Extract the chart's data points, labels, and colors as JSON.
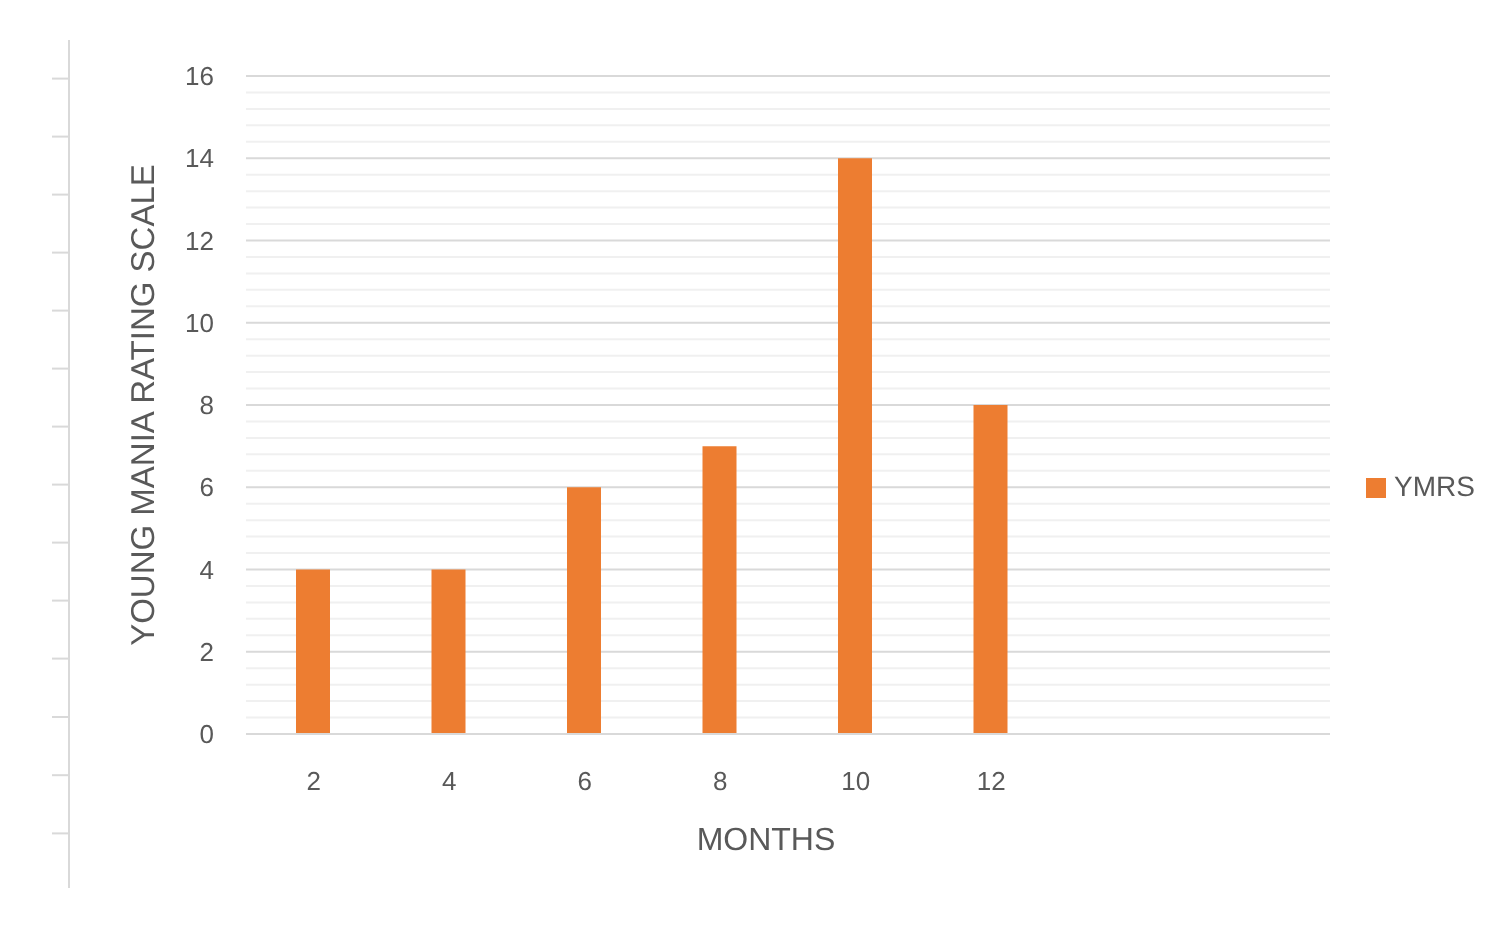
{
  "chart_data": {
    "type": "bar",
    "xlabel": "MONTHS",
    "ylabel": "YOUNG MANIA RATING SCALE",
    "categories": [
      "2",
      "4",
      "6",
      "8",
      "10",
      "12",
      null,
      null
    ],
    "series": [
      {
        "name": "YMRS",
        "color": "#ed7d31",
        "values": [
          4,
          4,
          6,
          7,
          14,
          8,
          null,
          null
        ]
      }
    ],
    "ylim": [
      0,
      16
    ],
    "yticks": [
      0,
      {
        "value": 0.4,
        "label": null
      },
      {
        "value": 0.8,
        "label": null
      },
      {
        "value": 1.2,
        "label": null
      },
      {
        "value": 1.6,
        "label": null
      },
      2,
      {
        "value": 2.4,
        "label": null
      },
      {
        "value": 2.8,
        "label": null
      },
      {
        "value": 3.2,
        "label": null
      },
      {
        "value": 3.6,
        "label": null
      },
      4,
      {
        "value": 4.4,
        "label": null
      },
      {
        "value": 4.8,
        "label": null
      },
      {
        "value": 5.2,
        "label": null
      },
      {
        "value": 5.6,
        "label": null
      },
      6,
      {
        "value": 6.4,
        "label": null
      },
      {
        "value": 6.8,
        "label": null
      },
      {
        "value": 7.2,
        "label": null
      },
      {
        "value": 7.6,
        "label": null
      },
      8,
      {
        "value": 8.4,
        "label": null
      },
      {
        "value": 8.8,
        "label": null
      },
      {
        "value": 9.2,
        "label": null
      },
      {
        "value": 9.6,
        "label": null
      },
      10,
      {
        "value": 10.4,
        "label": null
      },
      {
        "value": 10.8,
        "label": null
      },
      {
        "value": 11.2,
        "label": null
      },
      {
        "value": 11.6,
        "label": null
      },
      12,
      {
        "value": 12.4,
        "label": null
      },
      {
        "value": 12.8,
        "label": null
      },
      {
        "value": 13.2,
        "label": null
      },
      {
        "value": 13.6,
        "label": null
      },
      14,
      {
        "value": 14.4,
        "label": null
      },
      {
        "value": 14.8,
        "label": null
      },
      {
        "value": 15.2,
        "label": null
      },
      {
        "value": 15.6,
        "label": null
      },
      16
    ],
    "grid": "y",
    "legend": "right"
  }
}
